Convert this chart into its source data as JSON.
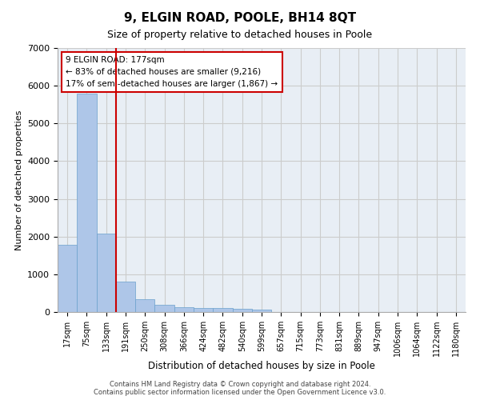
{
  "title": "9, ELGIN ROAD, POOLE, BH14 8QT",
  "subtitle": "Size of property relative to detached houses in Poole",
  "xlabel": "Distribution of detached houses by size in Poole",
  "ylabel": "Number of detached properties",
  "bar_labels": [
    "17sqm",
    "75sqm",
    "133sqm",
    "191sqm",
    "250sqm",
    "308sqm",
    "366sqm",
    "424sqm",
    "482sqm",
    "540sqm",
    "599sqm",
    "657sqm",
    "715sqm",
    "773sqm",
    "831sqm",
    "889sqm",
    "947sqm",
    "1006sqm",
    "1064sqm",
    "1122sqm",
    "1180sqm"
  ],
  "bar_values": [
    1780,
    5800,
    2080,
    800,
    340,
    200,
    130,
    110,
    100,
    90,
    70,
    0,
    0,
    0,
    0,
    0,
    0,
    0,
    0,
    0,
    0
  ],
  "bar_color": "#aec6e8",
  "bar_edgecolor": "#6aa0cc",
  "vline_color": "#cc0000",
  "annotation_text": "9 ELGIN ROAD: 177sqm\n← 83% of detached houses are smaller (9,216)\n17% of semi-detached houses are larger (1,867) →",
  "annotation_box_color": "#ffffff",
  "annotation_border_color": "#cc0000",
  "ylim": [
    0,
    7000
  ],
  "yticks": [
    0,
    1000,
    2000,
    3000,
    4000,
    5000,
    6000,
    7000
  ],
  "grid_color": "#cccccc",
  "bg_color": "#e8eef5",
  "footer_line1": "Contains HM Land Registry data © Crown copyright and database right 2024.",
  "footer_line2": "Contains public sector information licensed under the Open Government Licence v3.0."
}
